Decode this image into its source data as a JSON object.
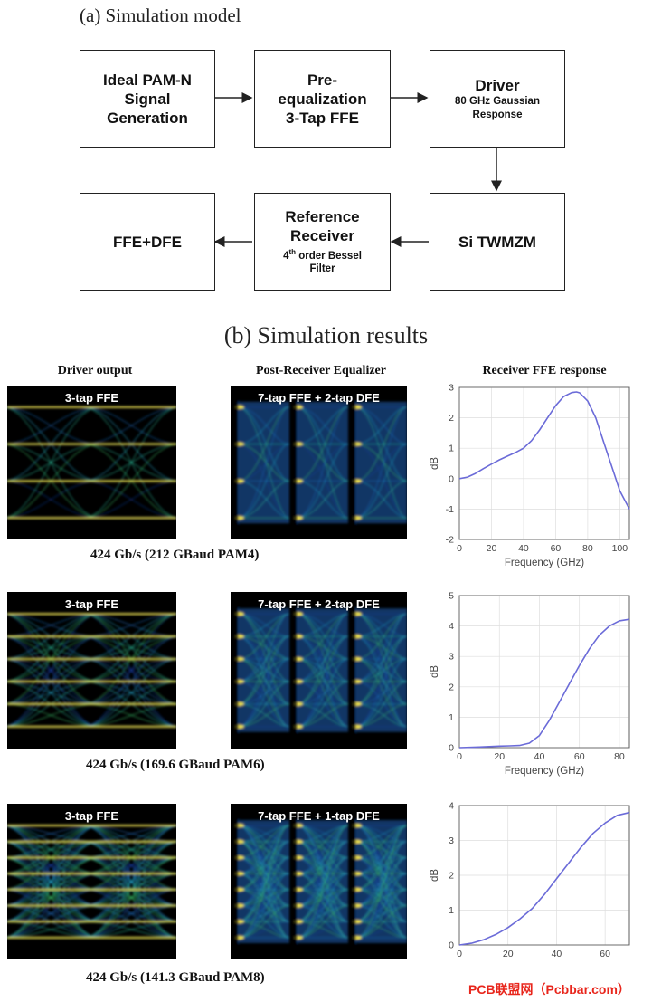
{
  "section_a": {
    "title": "(a) Simulation model"
  },
  "blocks": {
    "gen": {
      "lines": [
        "Ideal PAM-N",
        "Signal",
        "Generation"
      ]
    },
    "preeq": {
      "lines": [
        "Pre-",
        "equalization",
        "3-Tap FFE"
      ]
    },
    "driver": {
      "title": "Driver",
      "sub": [
        "80 GHz Gaussian",
        "Response"
      ]
    },
    "mzm": {
      "title": "Si TWMZM"
    },
    "refrx": {
      "title": [
        "Reference",
        "Receiver"
      ],
      "sub_pre": "4",
      "sub_sup": "th",
      "sub_post": " order Bessel",
      "sub2": "Filter"
    },
    "ffedfe": {
      "title": "FFE+DFE"
    }
  },
  "section_b": {
    "title": "(b) Simulation results"
  },
  "columns": [
    "Driver output",
    "Post-Receiver Equalizer",
    "Receiver FFE response"
  ],
  "rows": [
    {
      "caption": "424 Gb/s (212 GBaud PAM4)",
      "driver_label": "3-tap FFE",
      "rx_label": "7-tap FFE + 2-tap DFE",
      "levels": 4
    },
    {
      "caption": "424 Gb/s (169.6 GBaud PAM6)",
      "driver_label": "3-tap FFE",
      "rx_label": "7-tap FFE + 2-tap DFE",
      "levels": 6
    },
    {
      "caption": "424 Gb/s (141.3 GBaud PAM8)",
      "driver_label": "3-tap FFE",
      "rx_label": "7-tap FFE + 1-tap DFE",
      "levels": 8
    }
  ],
  "chart_data": [
    {
      "type": "line",
      "xlabel": "Frequency (GHz)",
      "ylabel": "dB",
      "xlim": [
        0,
        106
      ],
      "ylim": [
        -2,
        3
      ],
      "xticks": [
        0,
        20,
        40,
        60,
        80,
        100
      ],
      "yticks": [
        -2,
        -1,
        0,
        1,
        2,
        3
      ],
      "grid": true,
      "color": "#6b6bd8",
      "x": [
        0,
        5,
        10,
        15,
        20,
        25,
        30,
        35,
        40,
        45,
        50,
        55,
        60,
        65,
        70,
        73,
        75,
        80,
        85,
        90,
        95,
        100,
        106
      ],
      "y": [
        0,
        0.05,
        0.17,
        0.33,
        0.48,
        0.62,
        0.74,
        0.86,
        1.0,
        1.25,
        1.6,
        2.0,
        2.4,
        2.7,
        2.83,
        2.85,
        2.82,
        2.55,
        2.0,
        1.2,
        0.4,
        -0.4,
        -1.0
      ]
    },
    {
      "type": "line",
      "xlabel": "Frequency (GHz)",
      "ylabel": "dB",
      "xlim": [
        0,
        85
      ],
      "ylim": [
        0,
        5
      ],
      "xticks": [
        0,
        20,
        40,
        60,
        80
      ],
      "yticks": [
        0,
        1,
        2,
        3,
        4,
        5
      ],
      "grid": true,
      "color": "#6b6bd8",
      "x": [
        0,
        10,
        20,
        25,
        30,
        35,
        40,
        45,
        50,
        55,
        60,
        65,
        70,
        75,
        80,
        85
      ],
      "y": [
        0,
        0.02,
        0.05,
        0.06,
        0.07,
        0.15,
        0.4,
        0.9,
        1.5,
        2.1,
        2.7,
        3.25,
        3.7,
        4.0,
        4.17,
        4.22
      ]
    },
    {
      "type": "line",
      "xlabel": "",
      "ylabel": "dB",
      "xlim": [
        0,
        70
      ],
      "ylim": [
        0,
        4
      ],
      "xticks": [
        0,
        20,
        40,
        60
      ],
      "yticks": [
        0,
        1,
        2,
        3,
        4
      ],
      "grid": true,
      "color": "#6b6bd8",
      "x": [
        0,
        5,
        10,
        15,
        20,
        25,
        30,
        35,
        40,
        45,
        50,
        55,
        60,
        65,
        70
      ],
      "y": [
        0,
        0.05,
        0.15,
        0.3,
        0.5,
        0.75,
        1.05,
        1.45,
        1.9,
        2.35,
        2.8,
        3.2,
        3.5,
        3.72,
        3.8
      ]
    }
  ],
  "watermark": "PCB联盟网（Pcbbar.com）"
}
